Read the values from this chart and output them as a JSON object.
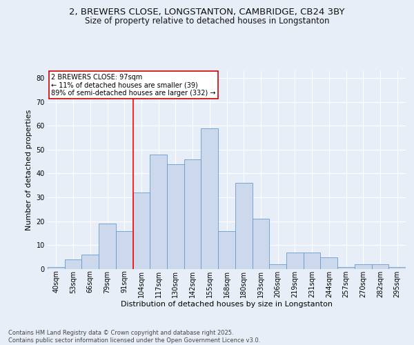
{
  "title_line1": "2, BREWERS CLOSE, LONGSTANTON, CAMBRIDGE, CB24 3BY",
  "title_line2": "Size of property relative to detached houses in Longstanton",
  "xlabel": "Distribution of detached houses by size in Longstanton",
  "ylabel": "Number of detached properties",
  "bin_labels": [
    "40sqm",
    "53sqm",
    "66sqm",
    "79sqm",
    "91sqm",
    "104sqm",
    "117sqm",
    "130sqm",
    "142sqm",
    "155sqm",
    "168sqm",
    "180sqm",
    "193sqm",
    "206sqm",
    "219sqm",
    "231sqm",
    "244sqm",
    "257sqm",
    "270sqm",
    "282sqm",
    "295sqm"
  ],
  "bar_heights": [
    1,
    4,
    6,
    19,
    16,
    32,
    48,
    44,
    46,
    59,
    16,
    36,
    21,
    2,
    7,
    7,
    5,
    1,
    2,
    2,
    1
  ],
  "bar_color": "#ccd9ed",
  "bar_edge_color": "#6699cc",
  "bg_color": "#e8eef8",
  "grid_color": "#ffffff",
  "red_line_x": 4.5,
  "annotation_text": "2 BREWERS CLOSE: 97sqm\n← 11% of detached houses are smaller (39)\n89% of semi-detached houses are larger (332) →",
  "annotation_box_color": "#ffffff",
  "annotation_box_edge": "#cc0000",
  "ylim": [
    0,
    83
  ],
  "yticks": [
    0,
    10,
    20,
    30,
    40,
    50,
    60,
    70,
    80
  ],
  "footnote": "Contains HM Land Registry data © Crown copyright and database right 2025.\nContains public sector information licensed under the Open Government Licence v3.0.",
  "title_fontsize": 9.5,
  "subtitle_fontsize": 8.5,
  "axis_label_fontsize": 8,
  "tick_fontsize": 7,
  "annot_fontsize": 7,
  "footnote_fontsize": 6
}
